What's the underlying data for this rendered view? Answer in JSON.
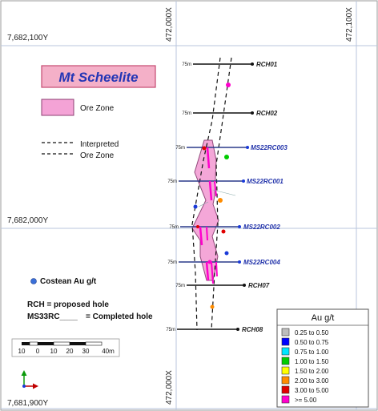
{
  "grid": {
    "northings": [
      "7,682,100Y",
      "7,682,000Y",
      "7,681,900Y"
    ],
    "eastings": [
      "472,000X",
      "472,100X"
    ]
  },
  "title": "Mt Scheelite",
  "legend": {
    "ore_zone": "Ore Zone",
    "interpreted_line1": "Interpreted",
    "interpreted_line2": "Ore Zone",
    "costean": "Costean Au g/t",
    "rch_note": "RCH = proposed hole",
    "ms_note_code": "MS33RC____",
    "ms_note_text": "= Completed hole"
  },
  "scale_bar": {
    "labels": [
      "10",
      "0",
      "10",
      "20",
      "30",
      "40m"
    ]
  },
  "holes": [
    {
      "name": "RCH01",
      "depth": "75m",
      "status": "proposed"
    },
    {
      "name": "RCH02",
      "depth": "75m",
      "status": "proposed"
    },
    {
      "name": "MS22RC003",
      "depth": "75m",
      "status": "completed"
    },
    {
      "name": "MS22RC001",
      "depth": "75m",
      "status": "completed"
    },
    {
      "name": "MS22RC002",
      "depth": "75m",
      "status": "completed"
    },
    {
      "name": "MS22RC004",
      "depth": "75m",
      "status": "completed"
    },
    {
      "name": "RCH07",
      "depth": "75m",
      "status": "proposed"
    },
    {
      "name": "RCH08",
      "depth": "75m",
      "status": "proposed"
    }
  ],
  "au_legend": {
    "title": "Au g/t",
    "classes": [
      {
        "label": "0.25 to 0.50",
        "color": "#bdbdbd"
      },
      {
        "label": "0.50 to 0.75",
        "color": "#0000ff"
      },
      {
        "label": "0.75 to 1.00",
        "color": "#00e5ff"
      },
      {
        "label": "1.00 to 1.50",
        "color": "#00cc00"
      },
      {
        "label": "1.50 to 2.00",
        "color": "#ffff00"
      },
      {
        "label": "2.00 to 3.00",
        "color": "#ff8c00"
      },
      {
        "label": "3.00 to 5.00",
        "color": "#e00000"
      },
      {
        "label": ">= 5.00",
        "color": "#ff00cc"
      }
    ]
  },
  "colors": {
    "ore_zone_fill": "#f4a3d6",
    "completed_label": "#2233aa",
    "proposed_label": "#222222",
    "title_box": "#f4b0c8",
    "title_text": "#2436b5"
  }
}
